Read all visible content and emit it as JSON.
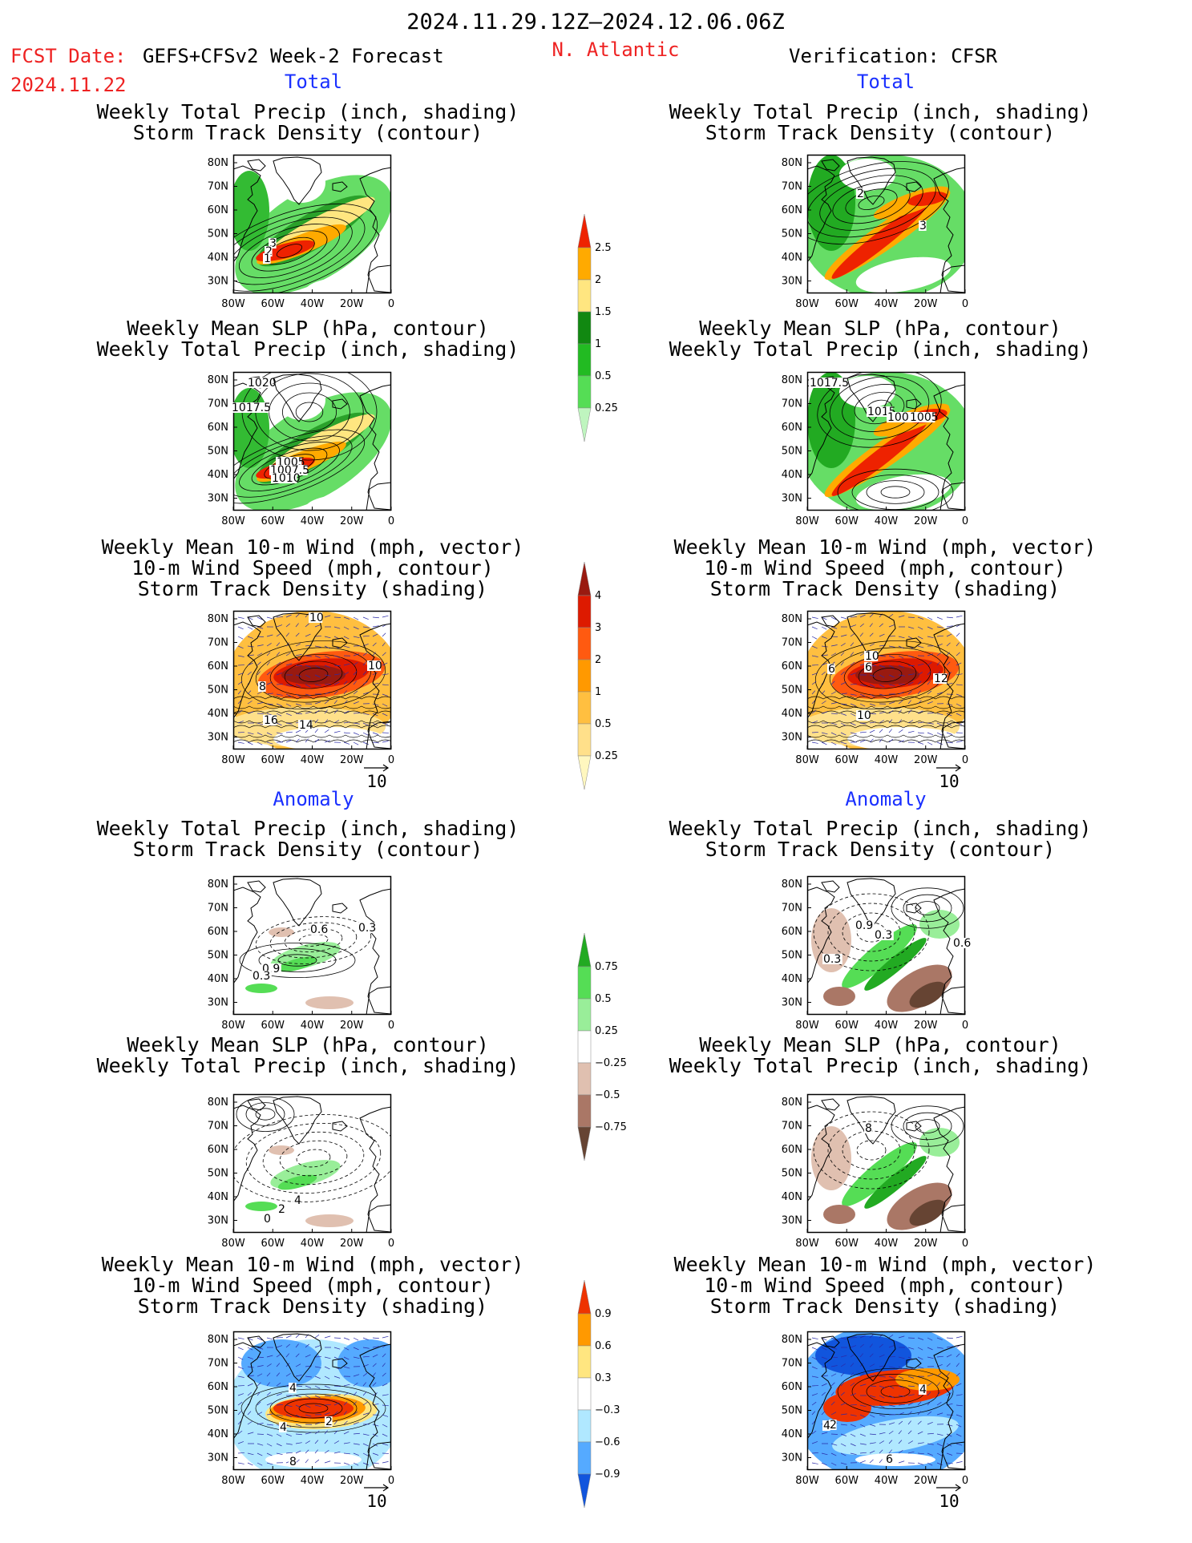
{
  "header": {
    "period": "2024.11.29.12Z–2024.12.06.06Z",
    "fcst_label": "FCST Date:",
    "fcst_date": "2024.11.22",
    "model": "GEFS+CFSv2 Week-2 Forecast",
    "region": "N. Atlantic",
    "verification": "Verification: CFSR"
  },
  "section_labels": {
    "total": "Total",
    "anomaly": "Anomaly"
  },
  "panel_titles": {
    "precip_track": [
      "Weekly Total Precip (inch, shading)",
      "Storm Track Density (contour)"
    ],
    "slp_precip": [
      "Weekly Mean SLP (hPa, contour)",
      "Weekly Total Precip (inch, shading)"
    ],
    "wind_track": [
      "Weekly Mean 10-m Wind (mph, vector)",
      "10-m Wind Speed (mph, contour)",
      "Storm Track Density (shading)"
    ]
  },
  "axes": {
    "lon_ticks": [
      "80W",
      "60W",
      "40W",
      "20W",
      "0"
    ],
    "lat_ticks": [
      "80N",
      "70N",
      "60N",
      "50N",
      "40N",
      "30N"
    ]
  },
  "vector_reference": "10",
  "colorbars": {
    "precip_total": {
      "labels": [
        "0.25",
        "0.5",
        "1",
        "1.5",
        "2",
        "2.5"
      ],
      "colors": [
        "#bff5bf",
        "#55dd55",
        "#22bb22",
        "#118811",
        "#ffe680",
        "#ffaa00",
        "#ee2200"
      ]
    },
    "storm_density_total": {
      "labels": [
        "0.25",
        "0.5",
        "1",
        "2",
        "3",
        "4"
      ],
      "colors": [
        "#fff7bf",
        "#ffe08a",
        "#ffbf40",
        "#ff9900",
        "#ff5a10",
        "#dd1a00",
        "#991a10"
      ]
    },
    "precip_anom": {
      "labels": [
        "0.75",
        "0.5",
        "0.25",
        "−0.25",
        "−0.5",
        "−0.75"
      ],
      "colors": [
        "#22aa22",
        "#55dd55",
        "#99ee99",
        "#ffffff",
        "#e0c0b0",
        "#aa7766",
        "#664433"
      ]
    },
    "storm_density_anom": {
      "labels": [
        "0.9",
        "0.6",
        "0.3",
        "−0.3",
        "−0.6",
        "−0.9"
      ],
      "colors": [
        "#ee3300",
        "#ff9900",
        "#ffe680",
        "#ffffff",
        "#b0e8ff",
        "#55aaff",
        "#1155dd"
      ]
    }
  },
  "panels": {
    "fcst_total_precip": {
      "labels": [
        "3",
        "2",
        "1"
      ]
    },
    "fcst_total_slp": {
      "labels": [
        "1020",
        "1017.5",
        "1005",
        "1007.5",
        "1010"
      ]
    },
    "fcst_total_wind": {
      "labels": [
        "10",
        "10",
        "8",
        "16",
        "14"
      ]
    },
    "ver_total_precip": {
      "labels": [
        "2",
        "3"
      ]
    },
    "ver_total_slp": {
      "labels": [
        "1017.5",
        "1015",
        "1007.5",
        "1005"
      ]
    },
    "ver_total_wind": {
      "labels": [
        "10",
        "6",
        "6",
        "12",
        "10"
      ]
    },
    "fcst_anom_precip": {
      "labels": [
        "0.6",
        "0.3",
        "0.9",
        "0.3"
      ]
    },
    "fcst_anom_slp": {
      "labels": [
        "4",
        "2",
        "0"
      ]
    },
    "fcst_anom_wind": {
      "labels": [
        "4",
        "4",
        "2",
        "8"
      ]
    },
    "ver_anom_precip": {
      "labels": [
        "0.9",
        "0.3",
        "0.3",
        "0.6"
      ]
    },
    "ver_anom_slp": {
      "labels": [
        "8"
      ]
    },
    "ver_anom_wind": {
      "labels": [
        "4",
        "2",
        "4",
        "6"
      ]
    }
  }
}
